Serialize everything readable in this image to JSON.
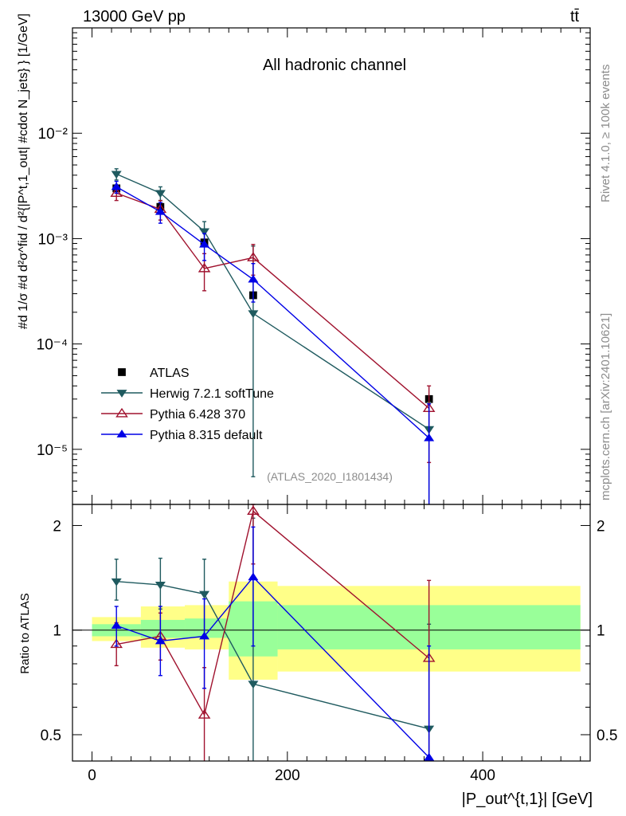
{
  "header": {
    "left": "13000 GeV pp",
    "right": "tt̄"
  },
  "chart_data": [
    {
      "type": "line",
      "panel": "main",
      "title": "All hadronic channel",
      "xlabel": "|P_out^{t,1}| [GeV]",
      "ylabel": "#d₁/σ #d d²σ^{fid} / d²{|P_out^{t,1}| #cdot N_jets} [1/GeV]",
      "ylabel_text": "#d 1/σ #d d²σ^fid / d²{|P^t,1_out| #cdot N_jets} } [1/GeV]",
      "yscale": "log",
      "xlim": [
        -20,
        510
      ],
      "ylim": [
        3e-06,
        0.1
      ],
      "ytick_labels": [
        "10⁻⁵",
        "10⁻⁴",
        "10⁻³",
        "10⁻²"
      ],
      "annotation": "(ATLAS_2020_I1801434)",
      "x": [
        25,
        70,
        115,
        165,
        345
      ],
      "series": [
        {
          "name": "ATLAS",
          "color": "#000000",
          "marker": "square",
          "values": [
            0.003,
            0.002,
            0.00092,
            0.00029,
            3e-05
          ]
        },
        {
          "name": "Herwig 7.2.1 softTune",
          "color": "#1f5a5f",
          "marker": "triangle-down",
          "values": [
            0.0041,
            0.0027,
            0.00117,
            0.000195,
            1.55e-05
          ],
          "err_lo": [
            0.0036,
            0.0023,
            0.00088,
            5.5e-06,
            1e-07
          ],
          "err_hi": [
            0.0046,
            0.0031,
            0.00145,
            0.00085,
            2.8e-05
          ]
        },
        {
          "name": "Pythia 6.428 370",
          "color": "#a0122e",
          "marker": "triangle-open",
          "values": [
            0.0027,
            0.0019,
            0.00052,
            0.00066,
            2.45e-05
          ],
          "err_lo": [
            0.0023,
            0.0015,
            0.00032,
            0.00045,
            7.5e-06
          ],
          "err_hi": [
            0.0031,
            0.0023,
            0.00072,
            0.00088,
            4e-05
          ]
        },
        {
          "name": "Pythia 8.315 default",
          "color": "#0000e6",
          "marker": "triangle-up",
          "values": [
            0.0031,
            0.0018,
            0.00088,
            0.00041,
            1.28e-05
          ],
          "err_lo": [
            0.0027,
            0.0014,
            0.00062,
            0.00025,
            1e-07
          ],
          "err_hi": [
            0.0035,
            0.0022,
            0.00112,
            0.00058,
            2.7e-05
          ]
        }
      ]
    },
    {
      "type": "line",
      "panel": "ratio",
      "ylabel": "Ratio to ATLAS",
      "xlabel": "|P_out^{t,1}| [GeV]",
      "xlim": [
        -20,
        510
      ],
      "ylim": [
        0.42,
        2.3
      ],
      "yscale": "log",
      "yticks": [
        0.5,
        1,
        2
      ],
      "ytick_labels": [
        "0.5",
        "1",
        "2"
      ],
      "xticks": [
        0,
        200,
        400
      ],
      "xtick_labels": [
        "0",
        "200",
        "400"
      ],
      "x": [
        25,
        70,
        115,
        165,
        345
      ],
      "bands": [
        {
          "x0": 0,
          "x1": 50,
          "stat_lo": 0.96,
          "stat_hi": 1.04,
          "tot_lo": 0.93,
          "tot_hi": 1.09
        },
        {
          "x0": 50,
          "x1": 95,
          "stat_lo": 0.95,
          "stat_hi": 1.07,
          "tot_lo": 0.89,
          "tot_hi": 1.17
        },
        {
          "x0": 95,
          "x1": 140,
          "stat_lo": 0.95,
          "stat_hi": 1.08,
          "tot_lo": 0.88,
          "tot_hi": 1.18
        },
        {
          "x0": 140,
          "x1": 190,
          "stat_lo": 0.84,
          "stat_hi": 1.21,
          "tot_lo": 0.72,
          "tot_hi": 1.38
        },
        {
          "x0": 190,
          "x1": 500,
          "stat_lo": 0.88,
          "stat_hi": 1.18,
          "tot_lo": 0.76,
          "tot_hi": 1.34
        }
      ],
      "series": [
        {
          "name": "Herwig 7.2.1 softTune",
          "color": "#1f5a5f",
          "marker": "triangle-down",
          "values": [
            1.38,
            1.35,
            1.27,
            0.7,
            0.52
          ],
          "err_lo": [
            1.22,
            1.15,
            0.96,
            0.42,
            0.42
          ],
          "err_hi": [
            1.6,
            1.61,
            1.6,
            2.1,
            1.04
          ]
        },
        {
          "name": "Pythia 6.428 370",
          "color": "#a0122e",
          "marker": "triangle-open",
          "values": [
            0.91,
            0.96,
            0.57,
            2.2,
            0.83
          ],
          "err_lo": [
            0.79,
            0.82,
            0.42,
            1.55,
            0.42
          ],
          "err_hi": [
            1.05,
            1.12,
            0.78,
            2.3,
            1.39
          ]
        },
        {
          "name": "Pythia 8.315 default",
          "color": "#0000e6",
          "marker": "triangle-up",
          "values": [
            1.03,
            0.93,
            0.96,
            1.42,
            0.43
          ],
          "err_lo": [
            0.9,
            0.74,
            0.68,
            0.9,
            0.42
          ],
          "err_hi": [
            1.17,
            1.17,
            1.23,
            1.98,
            0.9
          ]
        }
      ]
    }
  ],
  "side_labels": {
    "top": "Rivet 4.1.0, ≥ 100k events",
    "bottom": "mcplots.cern.ch [arXiv:2401.10621]"
  },
  "legend": {
    "items": [
      "ATLAS",
      "Herwig 7.2.1 softTune",
      "Pythia 6.428 370",
      "Pythia 8.315 default"
    ]
  },
  "colors": {
    "stat_band": "#99ff99",
    "total_band": "#ffff88",
    "axes": "#000000"
  }
}
